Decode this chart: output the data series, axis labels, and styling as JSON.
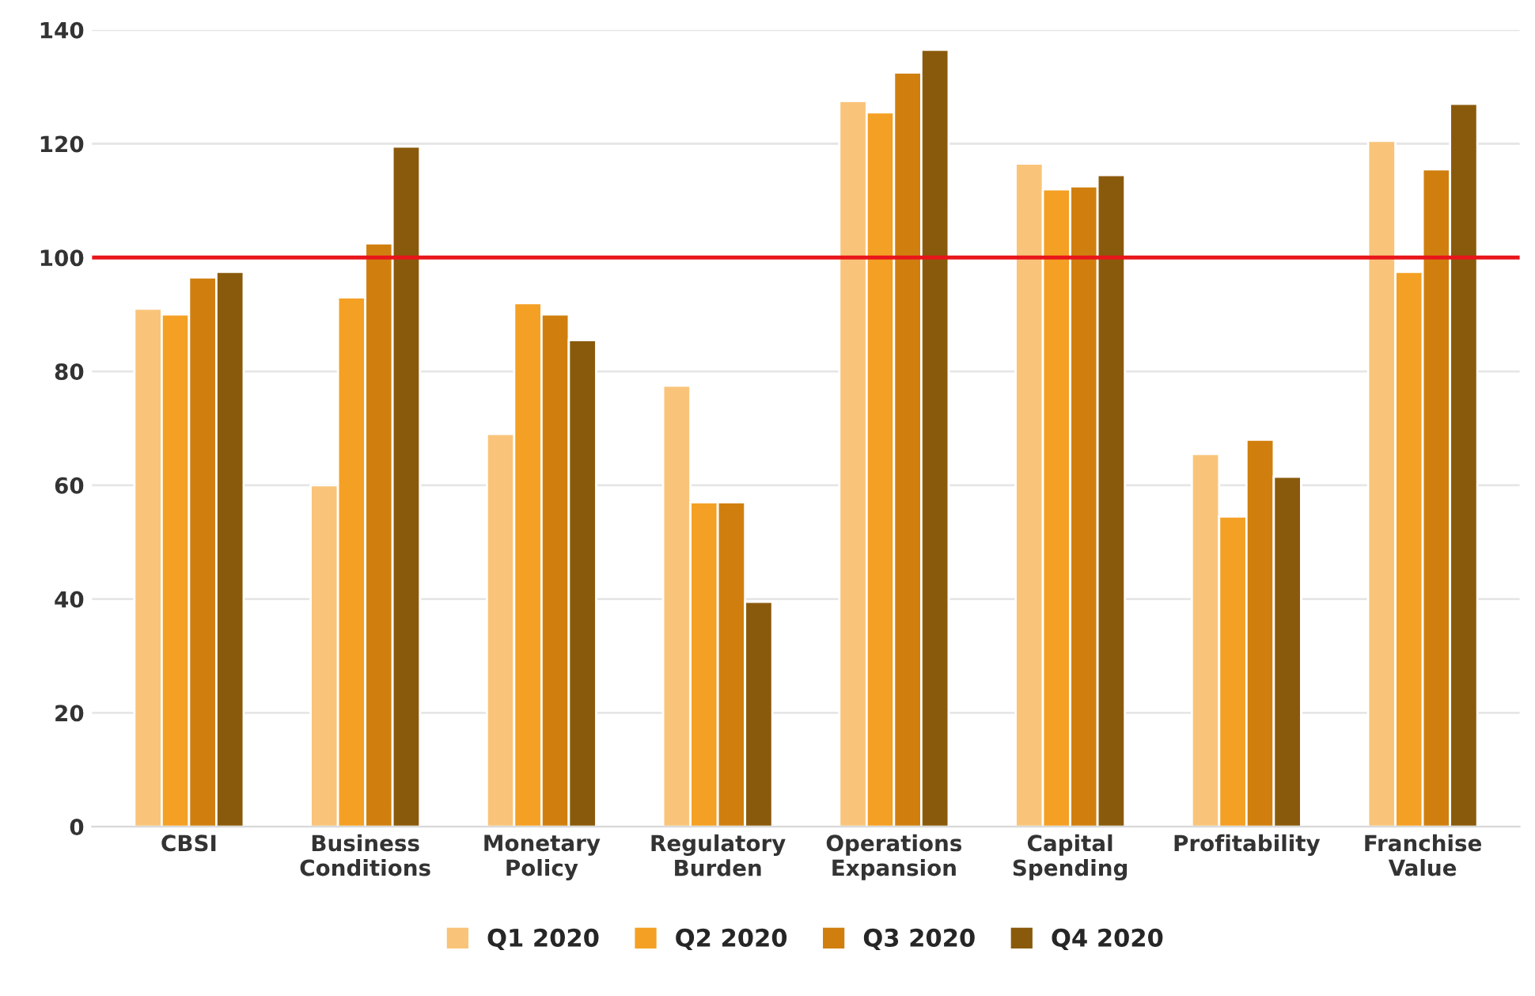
{
  "chart_data": {
    "type": "bar",
    "categories": [
      "CBSI",
      "Business\nConditions",
      "Monetary\nPolicy",
      "Regulatory\nBurden",
      "Operations\nExpansion",
      "Capital\nSpending",
      "Profitability",
      "Franchise\nValue"
    ],
    "series": [
      {
        "name": "Q1 2020",
        "color": "#f9c47a",
        "values": [
          91,
          60,
          69,
          77.5,
          127.5,
          116.5,
          65.5,
          120.5
        ]
      },
      {
        "name": "Q2 2020",
        "color": "#f4a024",
        "values": [
          90,
          93,
          92,
          57,
          125.5,
          112,
          54.5,
          97.5
        ]
      },
      {
        "name": "Q3 2020",
        "color": "#d07f0f",
        "values": [
          96.5,
          102.5,
          90,
          57,
          132.5,
          112.5,
          68,
          115.5
        ]
      },
      {
        "name": "Q4 2020",
        "color": "#8a5a0c",
        "values": [
          97.5,
          119.5,
          85.5,
          39.5,
          136.5,
          114.5,
          61.5,
          127
        ]
      }
    ],
    "ylim": [
      0,
      140
    ],
    "yticks": [
      0,
      20,
      40,
      60,
      80,
      100,
      120,
      140
    ],
    "ref_lines": [
      {
        "axis": "y",
        "value": 100,
        "color": "#e8161b",
        "line_style": "solid"
      }
    ],
    "grid": "y",
    "legend": "bottom"
  }
}
